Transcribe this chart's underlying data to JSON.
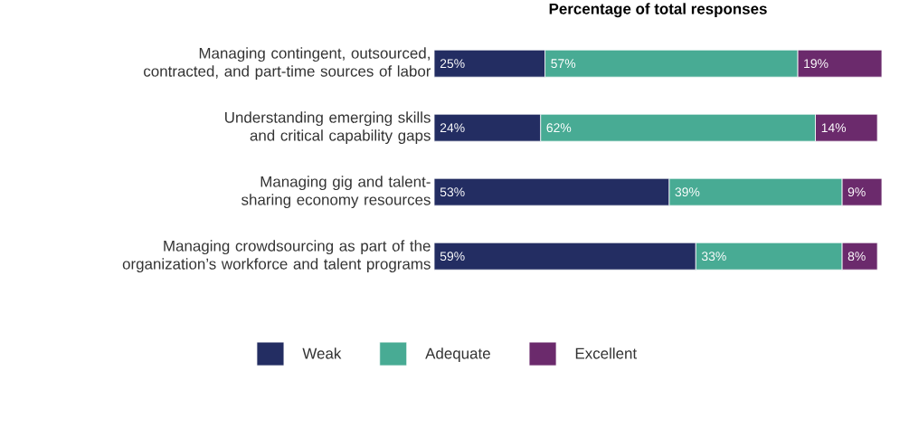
{
  "chart_data": {
    "type": "bar",
    "orientation": "horizontal",
    "stacked": true,
    "title": "Percentage of total responses",
    "categories": [
      "Managing contingent, outsourced, contracted, and part-time sources of labor",
      "Understanding emerging skills and critical capability gaps",
      "Managing gig and talent-sharing economy resources",
      "Managing crowdsourcing as part of the organization’s workforce and talent programs"
    ],
    "series": [
      {
        "name": "Weak",
        "color": "#232d62",
        "values": [
          25,
          24,
          53,
          59
        ],
        "value_labels": [
          "25%",
          "24%",
          "53%",
          "59%"
        ]
      },
      {
        "name": "Adequate",
        "color": "#48ab94",
        "values": [
          57,
          62,
          39,
          33
        ],
        "value_labels": [
          "57%",
          "62%",
          "39%",
          "33%"
        ]
      },
      {
        "name": "Excellent",
        "color": "#6b2a6c",
        "values": [
          19,
          14,
          9,
          8
        ],
        "value_labels": [
          "19%",
          "14%",
          "9%",
          "8%"
        ]
      }
    ],
    "legend": "bottom"
  }
}
